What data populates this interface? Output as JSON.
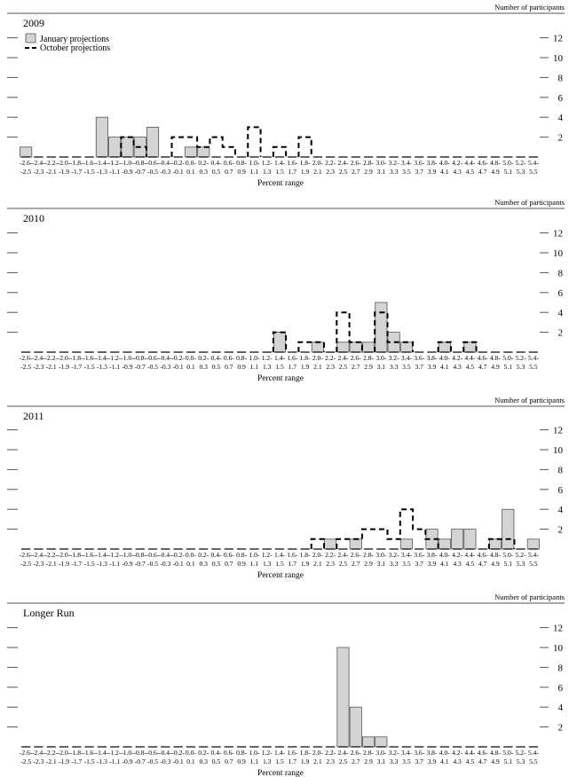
{
  "bins": [
    "-2.6- -2.5",
    "-2.4- -2.3",
    "-2.2- -2.1",
    "-2.0- -1.9",
    "-1.8- -1.7",
    "-1.6- -1.5",
    "-1.4- -1.3",
    "-1.2- -1.1",
    "-1.0- -0.9",
    "-0.8- -0.7",
    "-0.6- -0.5",
    "-0.4- -0.3",
    "-0.2- -0.1",
    "0.0- 0.1",
    "0.2- 0.3",
    "0.4- 0.5",
    "0.6- 0.7",
    "0.8- 0.9",
    "1.0- 1.1",
    "1.2- 1.3",
    "1.4- 1.5",
    "1.6- 1.7",
    "1.8- 1.9",
    "2.0- 2.1",
    "2.2- 2.3",
    "2.4- 2.5",
    "2.6- 2.7",
    "2.8- 2.9",
    "3.0- 3.1",
    "3.2- 3.3",
    "3.4- 3.5",
    "3.6- 3.7",
    "3.8- 3.9",
    "4.0- 4.1",
    "4.2- 4.3",
    "4.4- 4.5",
    "4.6- 4.7",
    "4.8- 4.9",
    "5.0- 5.1",
    "5.2- 5.3",
    "5.4- 5.5"
  ],
  "tick_top": [
    "-2.6",
    "-2.4",
    "-2.2",
    "-2.0",
    "-1.8",
    "-1.6",
    "-1.4",
    "-1.2",
    "-1.0",
    "-0.8",
    "-0.6",
    "-0.4",
    "-0.2",
    "0.0",
    "0.2",
    "0.4",
    "0.6",
    "0.8",
    "1.0",
    "1.2",
    "1.4",
    "1.6",
    "1.8",
    "2.0",
    "2.2",
    "2.4",
    "2.6",
    "2.8",
    "3.0",
    "3.2",
    "3.4",
    "3.6",
    "3.8",
    "4.0",
    "4.2",
    "4.4",
    "4.6",
    "4.8",
    "5.0",
    "5.2",
    "5.4"
  ],
  "tick_bottom": [
    "-2.5",
    "-2.3",
    "-2.1",
    "-1.9",
    "-1.7",
    "-1.5",
    "-1.3",
    "-1.1",
    "-0.9",
    "-0.7",
    "-0.5",
    "-0.3",
    "-0.1",
    "0.1",
    "0.3",
    "0.5",
    "0.7",
    "0.9",
    "1.1",
    "1.3",
    "1.5",
    "1.7",
    "1.9",
    "2.1",
    "2.3",
    "2.5",
    "2.7",
    "2.9",
    "3.1",
    "3.3",
    "3.5",
    "3.7",
    "3.9",
    "4.1",
    "4.3",
    "4.5",
    "4.7",
    "4.9",
    "5.1",
    "5.3",
    "5.5"
  ],
  "legend": {
    "january": "January projections",
    "october": "October projections"
  },
  "y_label": "Number of participants",
  "x_label": "Percent range",
  "y_ticks": [
    2,
    4,
    6,
    8,
    10,
    12
  ],
  "colors": {
    "bar_fill": "#d4d4d4",
    "bar_stroke": "#555555",
    "dash": "#000000",
    "axis": "#555555"
  },
  "chart_data": [
    {
      "type": "bar",
      "title": "2009",
      "xlabel": "Percent range",
      "ylabel": "Number of participants",
      "ylim": [
        0,
        12
      ],
      "legend": "top-left",
      "series": [
        {
          "name": "January projections",
          "values": [
            1,
            0,
            0,
            0,
            0,
            0,
            4,
            2,
            2,
            2,
            3,
            0,
            0,
            1,
            1,
            0,
            0,
            0,
            0,
            0,
            0,
            0,
            0,
            0,
            0,
            0,
            0,
            0,
            0,
            0,
            0,
            0,
            0,
            0,
            0,
            0,
            0,
            0,
            0,
            0,
            0
          ]
        },
        {
          "name": "October projections",
          "values": [
            0,
            0,
            0,
            0,
            0,
            0,
            0,
            0,
            2,
            1,
            0,
            0,
            2,
            2,
            1,
            2,
            1,
            0,
            3,
            0,
            1,
            0,
            2,
            0,
            0,
            0,
            0,
            0,
            0,
            0,
            0,
            0,
            0,
            0,
            0,
            0,
            0,
            0,
            0,
            0,
            0
          ]
        }
      ]
    },
    {
      "type": "bar",
      "title": "2010",
      "xlabel": "Percent range",
      "ylabel": "Number of participants",
      "ylim": [
        0,
        12
      ],
      "series": [
        {
          "name": "January projections",
          "values": [
            0,
            0,
            0,
            0,
            0,
            0,
            0,
            0,
            0,
            0,
            0,
            0,
            0,
            0,
            0,
            0,
            0,
            0,
            0,
            0,
            2,
            0,
            0,
            1,
            0,
            1,
            1,
            1,
            5,
            2,
            1,
            0,
            0,
            1,
            0,
            1,
            0,
            0,
            0,
            0,
            0
          ]
        },
        {
          "name": "October projections",
          "values": [
            0,
            0,
            0,
            0,
            0,
            0,
            0,
            0,
            0,
            0,
            0,
            0,
            0,
            0,
            0,
            0,
            0,
            0,
            0,
            0,
            2,
            0,
            1,
            1,
            0,
            4,
            1,
            0,
            4,
            1,
            1,
            0,
            0,
            1,
            0,
            1,
            0,
            0,
            0,
            0,
            0
          ]
        }
      ]
    },
    {
      "type": "bar",
      "title": "2011",
      "xlabel": "Percent range",
      "ylabel": "Number of participants",
      "ylim": [
        0,
        12
      ],
      "series": [
        {
          "name": "January projections",
          "values": [
            0,
            0,
            0,
            0,
            0,
            0,
            0,
            0,
            0,
            0,
            0,
            0,
            0,
            0,
            0,
            0,
            0,
            0,
            0,
            0,
            0,
            0,
            0,
            0,
            1,
            0,
            1,
            0,
            0,
            0,
            1,
            0,
            2,
            1,
            2,
            2,
            0,
            1,
            4,
            0,
            1
          ]
        },
        {
          "name": "October projections",
          "values": [
            0,
            0,
            0,
            0,
            0,
            0,
            0,
            0,
            0,
            0,
            0,
            0,
            0,
            0,
            0,
            0,
            0,
            0,
            0,
            0,
            0,
            0,
            0,
            1,
            0,
            1,
            1,
            2,
            2,
            1,
            4,
            2,
            1,
            0,
            0,
            0,
            0,
            1,
            1,
            0,
            0
          ]
        }
      ]
    },
    {
      "type": "bar",
      "title": "Longer Run",
      "xlabel": "Percent range",
      "ylabel": "Number of participants",
      "ylim": [
        0,
        12
      ],
      "series": [
        {
          "name": "January projections",
          "values": [
            0,
            0,
            0,
            0,
            0,
            0,
            0,
            0,
            0,
            0,
            0,
            0,
            0,
            0,
            0,
            0,
            0,
            0,
            0,
            0,
            0,
            0,
            0,
            0,
            0,
            10,
            4,
            1,
            1,
            0,
            0,
            0,
            0,
            0,
            0,
            0,
            0,
            0,
            0,
            0,
            0
          ]
        }
      ]
    }
  ]
}
